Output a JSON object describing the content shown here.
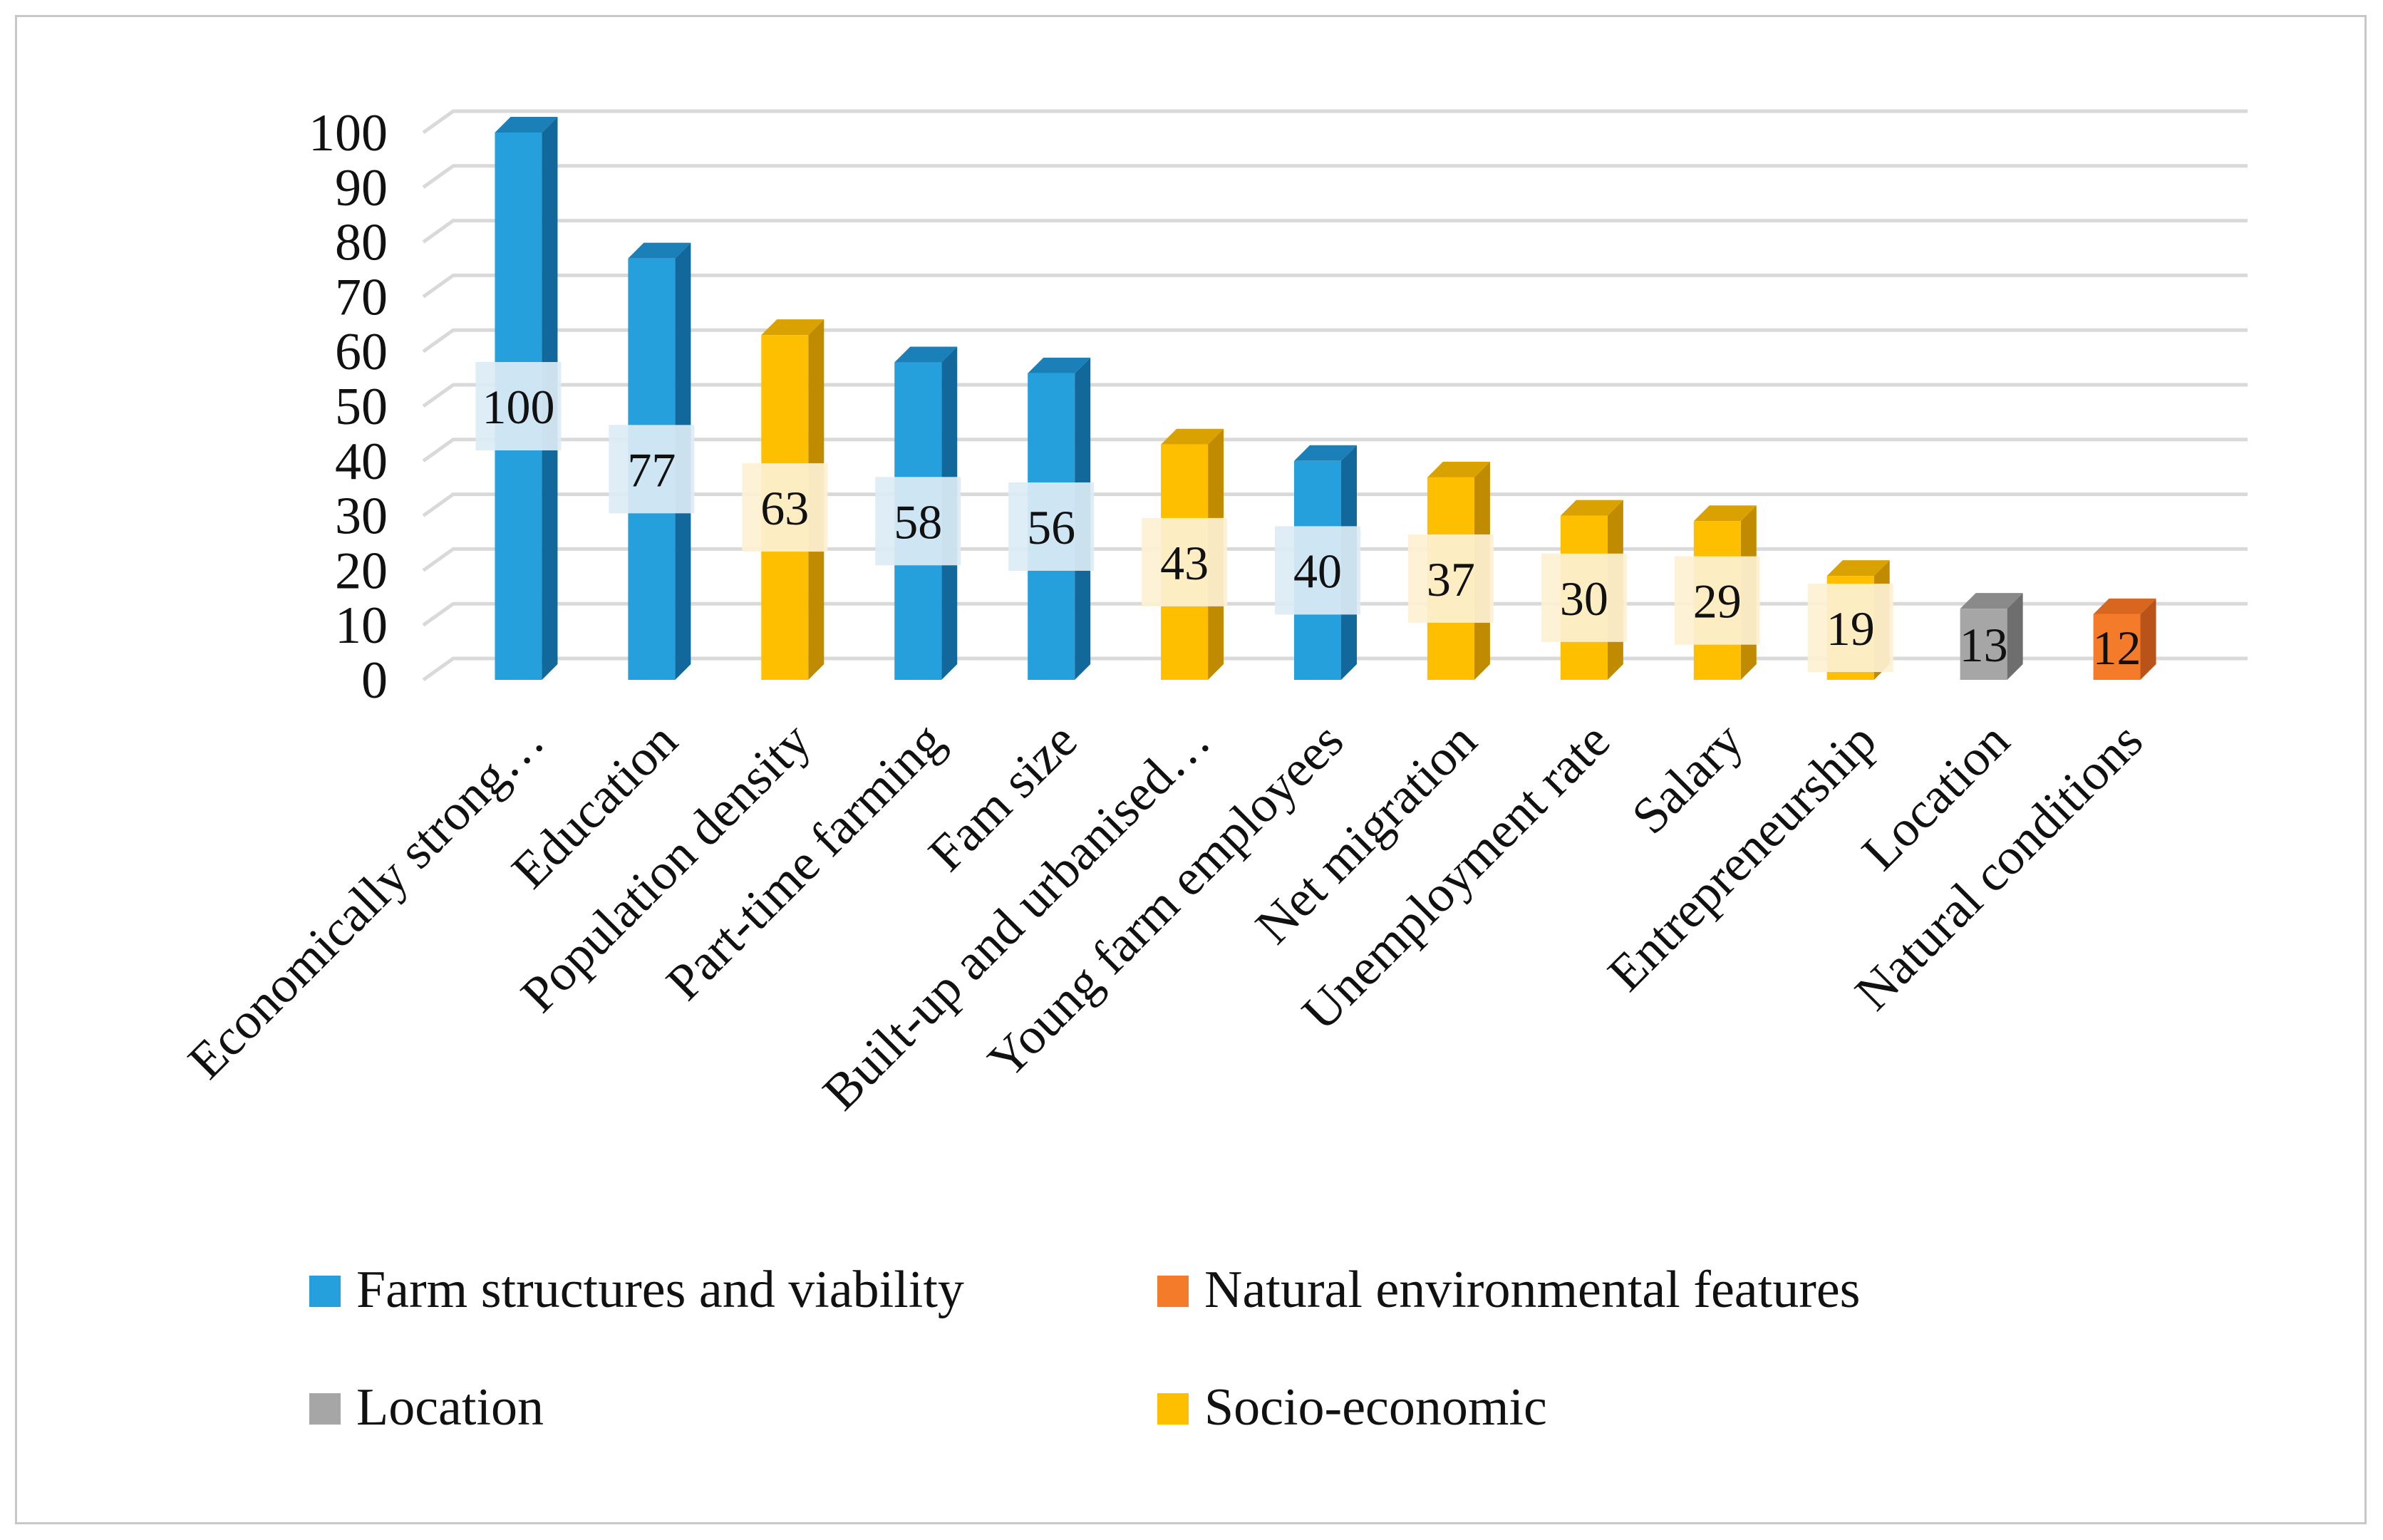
{
  "chart_data": {
    "type": "bar",
    "title": "",
    "xlabel": "",
    "ylabel": "",
    "ylim": [
      0,
      100
    ],
    "yticks": [
      0,
      10,
      20,
      30,
      40,
      50,
      60,
      70,
      80,
      90,
      100
    ],
    "categories": [
      "Economically strong…",
      "Education",
      "Population density",
      "Part-time farming",
      "Fam size",
      "Built-up and urbanised…",
      "Young farm employees",
      "Net migration",
      "Unemployment rate",
      "Salary",
      "Entrepreneurship",
      "Location",
      "Natural conditions"
    ],
    "values": [
      100,
      77,
      63,
      58,
      56,
      43,
      40,
      37,
      30,
      29,
      19,
      13,
      12
    ],
    "groups": [
      "Farm structures and viability",
      "Farm structures and viability",
      "Socio-economic",
      "Farm structures and viability",
      "Farm structures and viability",
      "Socio-economic",
      "Farm structures and viability",
      "Socio-economic",
      "Socio-economic",
      "Socio-economic",
      "Socio-economic",
      "Location",
      "Natural environmental features"
    ],
    "legend": [
      {
        "name": "Farm structures and viability",
        "color": "#26a0dc"
      },
      {
        "name": "Natural environmental features",
        "color": "#f47b2a"
      },
      {
        "name": "Location",
        "color": "#a6a6a6"
      },
      {
        "name": "Socio-economic",
        "color": "#fdbf00"
      }
    ],
    "colors": {
      "Farm structures and viability": {
        "front": "#26a0dc",
        "side": "#12689a",
        "top": "#1b7fb8",
        "label_bg": "#dcebf5"
      },
      "Socio-economic": {
        "front": "#fdbf00",
        "side": "#c08b00",
        "top": "#d9a200",
        "label_bg": "#fdf1d2"
      },
      "Location": {
        "front": "#a6a6a6",
        "side": "#6e6e6e",
        "top": "#8a8a8a",
        "label_bg": ""
      },
      "Natural environmental features": {
        "front": "#f47b2a",
        "side": "#b9531a",
        "top": "#d8661e",
        "label_bg": ""
      }
    },
    "grid": true,
    "legend_position": "bottom"
  }
}
